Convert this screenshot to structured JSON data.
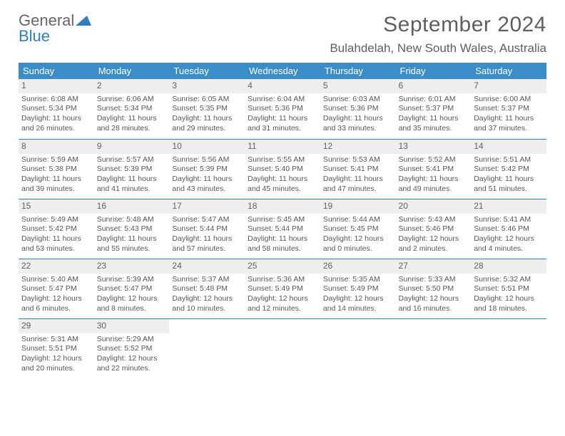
{
  "brand": {
    "name1": "General",
    "name2": "Blue"
  },
  "title": "September 2024",
  "location": "Bulahdelah, New South Wales, Australia",
  "colors": {
    "header_bg": "#3a8dc7",
    "accent_line": "#2d7fbd",
    "daynum_bg": "#eeeeee",
    "text": "#575757"
  },
  "day_headers": [
    "Sunday",
    "Monday",
    "Tuesday",
    "Wednesday",
    "Thursday",
    "Friday",
    "Saturday"
  ],
  "weeks": [
    [
      {
        "n": "1",
        "sr": "Sunrise: 6:08 AM",
        "ss": "Sunset: 5:34 PM",
        "d1": "Daylight: 11 hours",
        "d2": "and 26 minutes."
      },
      {
        "n": "2",
        "sr": "Sunrise: 6:06 AM",
        "ss": "Sunset: 5:34 PM",
        "d1": "Daylight: 11 hours",
        "d2": "and 28 minutes."
      },
      {
        "n": "3",
        "sr": "Sunrise: 6:05 AM",
        "ss": "Sunset: 5:35 PM",
        "d1": "Daylight: 11 hours",
        "d2": "and 29 minutes."
      },
      {
        "n": "4",
        "sr": "Sunrise: 6:04 AM",
        "ss": "Sunset: 5:36 PM",
        "d1": "Daylight: 11 hours",
        "d2": "and 31 minutes."
      },
      {
        "n": "5",
        "sr": "Sunrise: 6:03 AM",
        "ss": "Sunset: 5:36 PM",
        "d1": "Daylight: 11 hours",
        "d2": "and 33 minutes."
      },
      {
        "n": "6",
        "sr": "Sunrise: 6:01 AM",
        "ss": "Sunset: 5:37 PM",
        "d1": "Daylight: 11 hours",
        "d2": "and 35 minutes."
      },
      {
        "n": "7",
        "sr": "Sunrise: 6:00 AM",
        "ss": "Sunset: 5:37 PM",
        "d1": "Daylight: 11 hours",
        "d2": "and 37 minutes."
      }
    ],
    [
      {
        "n": "8",
        "sr": "Sunrise: 5:59 AM",
        "ss": "Sunset: 5:38 PM",
        "d1": "Daylight: 11 hours",
        "d2": "and 39 minutes."
      },
      {
        "n": "9",
        "sr": "Sunrise: 5:57 AM",
        "ss": "Sunset: 5:39 PM",
        "d1": "Daylight: 11 hours",
        "d2": "and 41 minutes."
      },
      {
        "n": "10",
        "sr": "Sunrise: 5:56 AM",
        "ss": "Sunset: 5:39 PM",
        "d1": "Daylight: 11 hours",
        "d2": "and 43 minutes."
      },
      {
        "n": "11",
        "sr": "Sunrise: 5:55 AM",
        "ss": "Sunset: 5:40 PM",
        "d1": "Daylight: 11 hours",
        "d2": "and 45 minutes."
      },
      {
        "n": "12",
        "sr": "Sunrise: 5:53 AM",
        "ss": "Sunset: 5:41 PM",
        "d1": "Daylight: 11 hours",
        "d2": "and 47 minutes."
      },
      {
        "n": "13",
        "sr": "Sunrise: 5:52 AM",
        "ss": "Sunset: 5:41 PM",
        "d1": "Daylight: 11 hours",
        "d2": "and 49 minutes."
      },
      {
        "n": "14",
        "sr": "Sunrise: 5:51 AM",
        "ss": "Sunset: 5:42 PM",
        "d1": "Daylight: 11 hours",
        "d2": "and 51 minutes."
      }
    ],
    [
      {
        "n": "15",
        "sr": "Sunrise: 5:49 AM",
        "ss": "Sunset: 5:42 PM",
        "d1": "Daylight: 11 hours",
        "d2": "and 53 minutes."
      },
      {
        "n": "16",
        "sr": "Sunrise: 5:48 AM",
        "ss": "Sunset: 5:43 PM",
        "d1": "Daylight: 11 hours",
        "d2": "and 55 minutes."
      },
      {
        "n": "17",
        "sr": "Sunrise: 5:47 AM",
        "ss": "Sunset: 5:44 PM",
        "d1": "Daylight: 11 hours",
        "d2": "and 57 minutes."
      },
      {
        "n": "18",
        "sr": "Sunrise: 5:45 AM",
        "ss": "Sunset: 5:44 PM",
        "d1": "Daylight: 11 hours",
        "d2": "and 58 minutes."
      },
      {
        "n": "19",
        "sr": "Sunrise: 5:44 AM",
        "ss": "Sunset: 5:45 PM",
        "d1": "Daylight: 12 hours",
        "d2": "and 0 minutes."
      },
      {
        "n": "20",
        "sr": "Sunrise: 5:43 AM",
        "ss": "Sunset: 5:46 PM",
        "d1": "Daylight: 12 hours",
        "d2": "and 2 minutes."
      },
      {
        "n": "21",
        "sr": "Sunrise: 5:41 AM",
        "ss": "Sunset: 5:46 PM",
        "d1": "Daylight: 12 hours",
        "d2": "and 4 minutes."
      }
    ],
    [
      {
        "n": "22",
        "sr": "Sunrise: 5:40 AM",
        "ss": "Sunset: 5:47 PM",
        "d1": "Daylight: 12 hours",
        "d2": "and 6 minutes."
      },
      {
        "n": "23",
        "sr": "Sunrise: 5:39 AM",
        "ss": "Sunset: 5:47 PM",
        "d1": "Daylight: 12 hours",
        "d2": "and 8 minutes."
      },
      {
        "n": "24",
        "sr": "Sunrise: 5:37 AM",
        "ss": "Sunset: 5:48 PM",
        "d1": "Daylight: 12 hours",
        "d2": "and 10 minutes."
      },
      {
        "n": "25",
        "sr": "Sunrise: 5:36 AM",
        "ss": "Sunset: 5:49 PM",
        "d1": "Daylight: 12 hours",
        "d2": "and 12 minutes."
      },
      {
        "n": "26",
        "sr": "Sunrise: 5:35 AM",
        "ss": "Sunset: 5:49 PM",
        "d1": "Daylight: 12 hours",
        "d2": "and 14 minutes."
      },
      {
        "n": "27",
        "sr": "Sunrise: 5:33 AM",
        "ss": "Sunset: 5:50 PM",
        "d1": "Daylight: 12 hours",
        "d2": "and 16 minutes."
      },
      {
        "n": "28",
        "sr": "Sunrise: 5:32 AM",
        "ss": "Sunset: 5:51 PM",
        "d1": "Daylight: 12 hours",
        "d2": "and 18 minutes."
      }
    ],
    [
      {
        "n": "29",
        "sr": "Sunrise: 5:31 AM",
        "ss": "Sunset: 5:51 PM",
        "d1": "Daylight: 12 hours",
        "d2": "and 20 minutes."
      },
      {
        "n": "30",
        "sr": "Sunrise: 5:29 AM",
        "ss": "Sunset: 5:52 PM",
        "d1": "Daylight: 12 hours",
        "d2": "and 22 minutes."
      },
      null,
      null,
      null,
      null,
      null
    ]
  ]
}
